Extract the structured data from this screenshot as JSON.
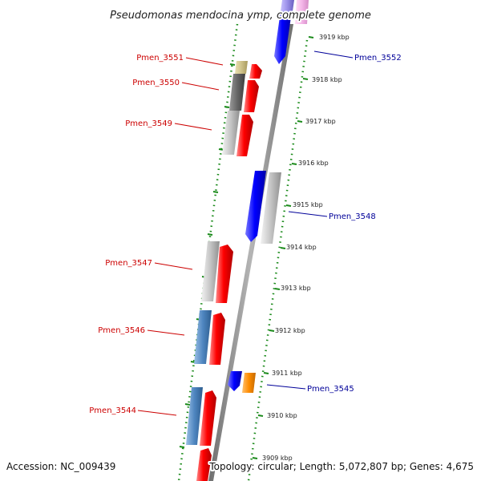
{
  "title": "Pseudomonas mendocina ymp, complete genome",
  "footer": {
    "accession": "Accession: NC_009439",
    "topology": "Topology: circular; Length: 5,072,807 bp; Genes: 4,675"
  },
  "ticks": [
    {
      "label": "3919 kbp"
    },
    {
      "label": "3918 kbp"
    },
    {
      "label": "3917 kbp"
    },
    {
      "label": "3916 kbp"
    },
    {
      "label": "3915 kbp"
    },
    {
      "label": "3914 kbp"
    },
    {
      "label": "3913 kbp"
    },
    {
      "label": "3912 kbp"
    },
    {
      "label": "3911 kbp"
    },
    {
      "label": "3910 kbp"
    },
    {
      "label": "3909 kbp"
    }
  ],
  "genes": [
    {
      "label": "Pmen_3552",
      "strand": "minus"
    },
    {
      "label": "Pmen_3551",
      "strand": "plus"
    },
    {
      "label": "Pmen_3550",
      "strand": "plus"
    },
    {
      "label": "Pmen_3549",
      "strand": "plus"
    },
    {
      "label": "Pmen_3548",
      "strand": "minus"
    },
    {
      "label": "Pmen_3547",
      "strand": "plus"
    },
    {
      "label": "Pmen_3546",
      "strand": "plus"
    },
    {
      "label": "Pmen_3545",
      "strand": "minus"
    },
    {
      "label": "Pmen_3544",
      "strand": "plus"
    }
  ],
  "colors": {
    "plus_strand": "#ff0000",
    "minus_strand": "#0000ff",
    "plus_label": "#cc0000",
    "minus_label": "#000099",
    "grid": "#1a8a1a",
    "backbone": "#8c8c8c",
    "orange": "#ff8c00",
    "steelblue": "#4f86c0",
    "grey": "#bdbdbd",
    "darkgrey": "#666666",
    "khaki": "#cfc38a",
    "lavender": "#9a8fe8",
    "pink": "#f4b6e8"
  }
}
